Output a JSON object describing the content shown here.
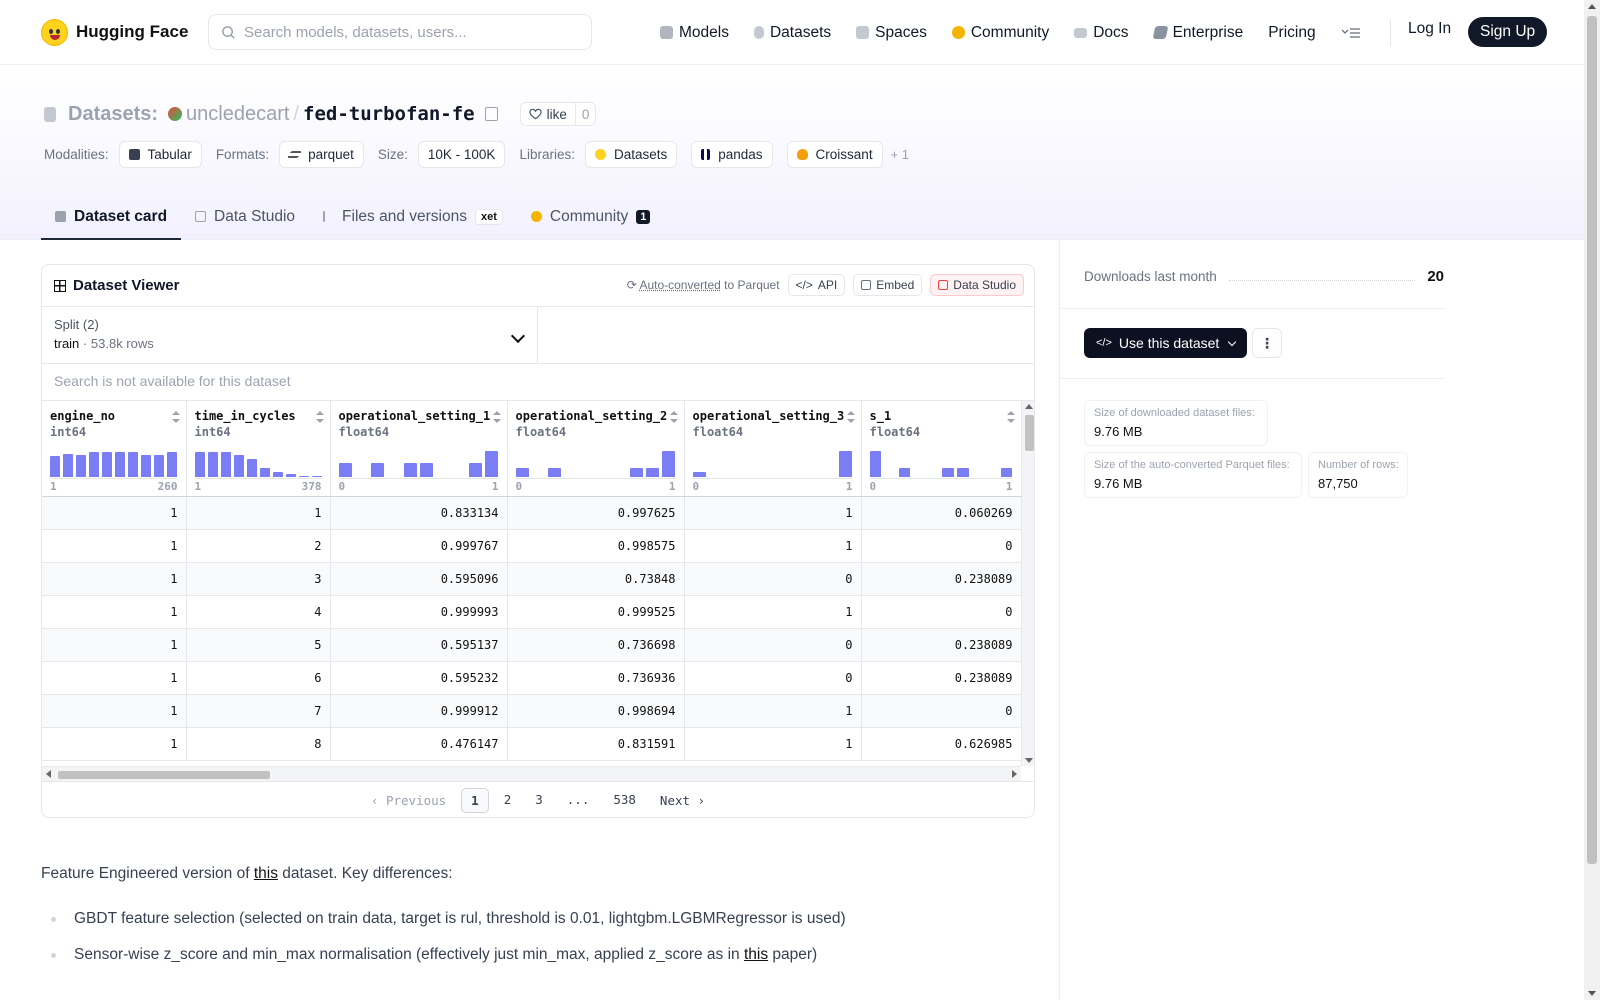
{
  "header": {
    "brand": "Hugging Face",
    "search_placeholder": "Search models, datasets, users...",
    "nav": [
      {
        "label": "Models",
        "icon": "cube-icon",
        "color": "#9ca3af"
      },
      {
        "label": "Datasets",
        "icon": "database-icon",
        "color": "#9ca3af"
      },
      {
        "label": "Spaces",
        "icon": "grid-icon",
        "color": "#9ca3af"
      },
      {
        "label": "Community",
        "icon": "community-icon",
        "color": "#f5b400"
      },
      {
        "label": "Docs",
        "icon": "book-icon",
        "color": "#9ca3af"
      },
      {
        "label": "Enterprise",
        "icon": "enterprise-icon",
        "color": "#6b7280"
      },
      {
        "label": "Pricing",
        "icon": "",
        "color": ""
      }
    ],
    "login": "Log In",
    "signup": "Sign Up"
  },
  "repo": {
    "kind": "Datasets:",
    "owner": "uncledecart",
    "slash": "/",
    "name": "fed-turbofan-fe",
    "like_label": "like",
    "like_count": "0"
  },
  "tags": {
    "modalities_label": "Modalities:",
    "modalities": [
      "Tabular"
    ],
    "formats_label": "Formats:",
    "formats": [
      "parquet"
    ],
    "size_label": "Size:",
    "size": [
      "10K - 100K"
    ],
    "libraries_label": "Libraries:",
    "libraries": [
      "Datasets",
      "pandas",
      "Croissant"
    ],
    "more": "+ 1"
  },
  "tabs": [
    {
      "label": "Dataset card",
      "active": true
    },
    {
      "label": "Data Studio"
    },
    {
      "label": "Files and versions",
      "badge": "xet"
    },
    {
      "label": "Community",
      "count": "1"
    }
  ],
  "viewer": {
    "title": "Dataset Viewer",
    "auto_converted": "Auto-converted",
    "to_parquet": "to Parquet",
    "api": "API",
    "embed": "Embed",
    "data_studio": "Data Studio",
    "split_label": "Split (2)",
    "split_value": "train",
    "split_dot": "·",
    "split_rows": "53.8k rows",
    "search_na": "Search is not available for this dataset",
    "columns": [
      {
        "name": "engine_no",
        "type": "int64",
        "min": "1",
        "max": "260",
        "hist": [
          0.8,
          0.9,
          0.85,
          0.95,
          0.95,
          0.95,
          0.95,
          0.85,
          0.85,
          0.95
        ]
      },
      {
        "name": "time_in_cycles",
        "type": "int64",
        "min": "1",
        "max": "378",
        "hist": [
          0.95,
          0.95,
          0.95,
          0.85,
          0.7,
          0.35,
          0.2,
          0.1,
          0.05,
          0.03
        ]
      },
      {
        "name": "operational_setting_1",
        "type": "float64",
        "min": "0",
        "max": "1",
        "hist": [
          0.55,
          0,
          0.55,
          0,
          0.55,
          0.55,
          0,
          0,
          0.55,
          1
        ]
      },
      {
        "name": "operational_setting_2",
        "type": "float64",
        "min": "0",
        "max": "1",
        "hist": [
          0.35,
          0,
          0.35,
          0,
          0,
          0,
          0,
          0.35,
          0.35,
          1
        ]
      },
      {
        "name": "operational_setting_3",
        "type": "float64",
        "min": "0",
        "max": "1",
        "hist": [
          0.18,
          0,
          0,
          0,
          0,
          0,
          0,
          0,
          0,
          1
        ]
      },
      {
        "name": "s_1",
        "type": "float64",
        "min": "0",
        "max": "1",
        "hist": [
          1,
          0,
          0.35,
          0,
          0,
          0.35,
          0.35,
          0,
          0,
          0.35
        ]
      }
    ],
    "rows": [
      [
        "1",
        "1",
        "0.833134",
        "0.997625",
        "1",
        "0.060269"
      ],
      [
        "1",
        "2",
        "0.999767",
        "0.998575",
        "1",
        "0"
      ],
      [
        "1",
        "3",
        "0.595096",
        "0.73848",
        "0",
        "0.238089"
      ],
      [
        "1",
        "4",
        "0.999993",
        "0.999525",
        "1",
        "0"
      ],
      [
        "1",
        "5",
        "0.595137",
        "0.736698",
        "0",
        "0.238089"
      ],
      [
        "1",
        "6",
        "0.595232",
        "0.736936",
        "0",
        "0.238089"
      ],
      [
        "1",
        "7",
        "0.999912",
        "0.998694",
        "1",
        "0"
      ],
      [
        "1",
        "8",
        "0.476147",
        "0.831591",
        "1",
        "0.626985"
      ]
    ],
    "pager": {
      "previous": "Previous",
      "pages": [
        "1",
        "2",
        "3",
        "...",
        "538"
      ],
      "current": "1",
      "next": "Next"
    }
  },
  "sidebar": {
    "downloads_label": "Downloads last month",
    "downloads_value": "20",
    "use_dataset": "Use this dataset",
    "stats": {
      "downloaded_label": "Size of downloaded dataset files:",
      "downloaded_value": "9.76 MB",
      "parquet_label": "Size of the auto-converted Parquet files:",
      "parquet_value": "9.76 MB",
      "rows_label": "Number of rows:",
      "rows_value": "87,750"
    }
  },
  "description": {
    "intro_before": "Feature Engineered version of ",
    "intro_link": "this",
    "intro_after": " dataset. Key differences:",
    "bullets": [
      {
        "text": "GBDT feature selection (selected on train data, target is rul, threshold is 0.01, lightgbm.LGBMRegressor is used)",
        "link": "",
        "after": ""
      },
      {
        "text": "Sensor-wise z_score and min_max normalisation (effectively just min_max, applied z_score as in ",
        "link": "this",
        "after": " paper)"
      }
    ]
  },
  "colors": {
    "accent": "#6366f1",
    "dark": "#111827",
    "brand_yellow": "#ffd21e"
  }
}
